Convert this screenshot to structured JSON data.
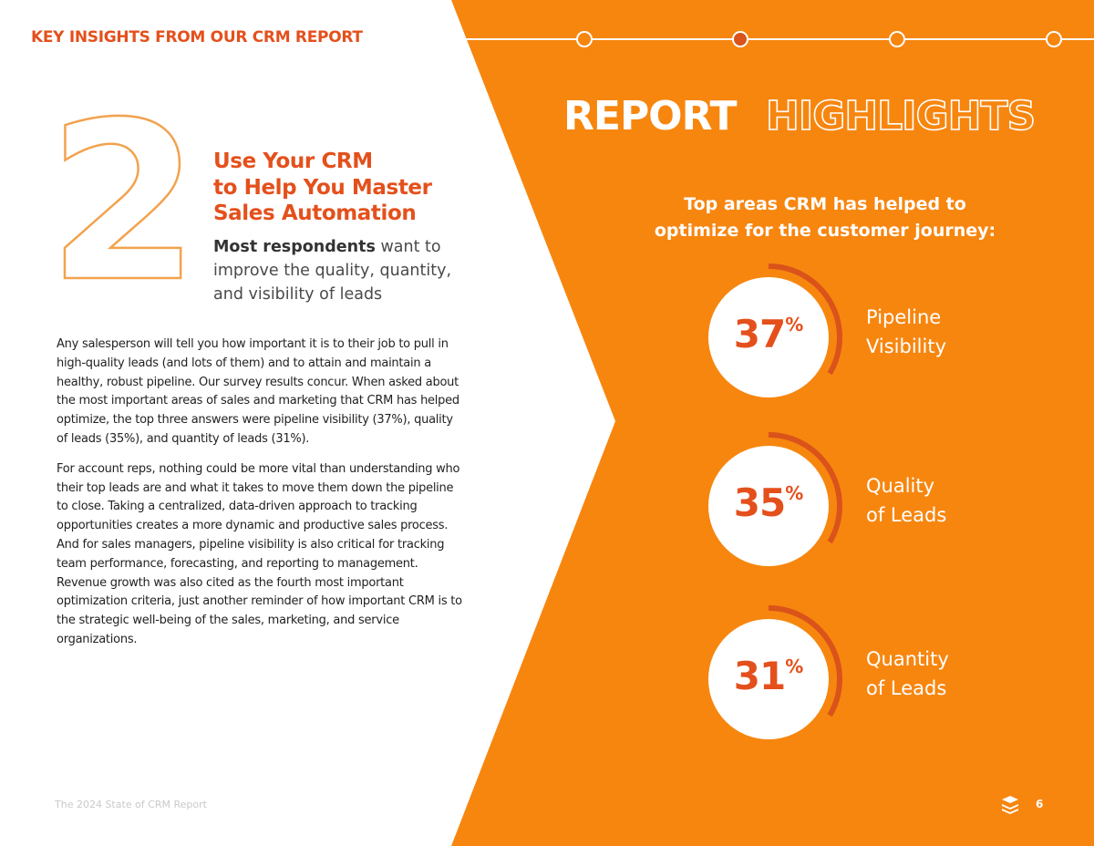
{
  "header": {
    "title": "KEY INSIGHTS FROM OUR CRM REPORT"
  },
  "section": {
    "number": "2",
    "heading": [
      "Use Your CRM",
      "to Help You Master",
      "Sales Automation"
    ],
    "subheading": {
      "bold": "Most respondents",
      "rest": "want to improve the quality, quantity, and visibility of leads"
    },
    "paragraphs": [
      "Any salesperson will tell you how important it is to their job to pull in high-quality leads (and lots of them) and to attain and maintain a healthy, robust pipeline. Our survey results concur. When asked about the most important areas of sales and marketing that CRM has helped optimize, the top three answers were pipeline visibility (37%), quality of leads (35%), and quantity of leads (31%).",
      "For account reps, nothing could be more vital than understanding who their top leads are and what it takes to move them down the pipeline to close. Taking a centralized, data-driven approach to tracking opportunities creates a more dynamic and productive sales process. And for sales managers, pipeline visibility is also critical for tracking team performance, forecasting, and reporting to management. Revenue growth was also cited as the fourth most important optimization criteria, just another reminder of how important CRM is to the strategic well-being of the sales, marketing, and service organizations."
    ]
  },
  "highlights": {
    "title_solid": "REPORT",
    "title_outline": "HIGHLIGHTS",
    "subtitle": [
      "Top areas CRM has helped to",
      "optimize for the customer journey:"
    ],
    "stats": [
      {
        "value": 37,
        "unit": "%",
        "label": [
          "Pipeline",
          "Visibility"
        ]
      },
      {
        "value": 35,
        "unit": "%",
        "label": [
          "Quality",
          "of Leads"
        ]
      },
      {
        "value": 31,
        "unit": "%",
        "label": [
          "Quantity",
          "of Leads"
        ]
      }
    ]
  },
  "footer": {
    "text": "The 2024 State of CRM Report",
    "page": "6"
  }
}
